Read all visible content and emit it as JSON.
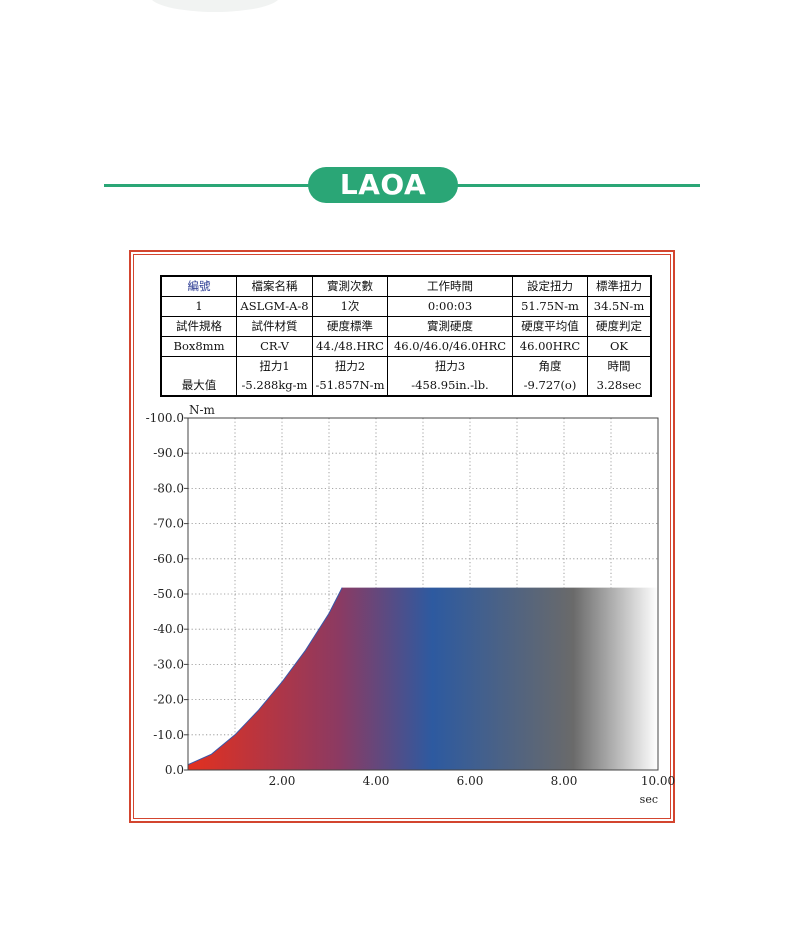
{
  "brand": {
    "name": "LAOA",
    "accent": "#2aa676"
  },
  "frame_color": "#d3452f",
  "info_table": {
    "row1": [
      {
        "header": "編號",
        "value": "1"
      },
      {
        "header": "檔案名稱",
        "value": "ASLGM-A-8"
      },
      {
        "header": "實測次數",
        "value": "1次"
      },
      {
        "header": "工作時間",
        "value": "0:00:03"
      },
      {
        "header": "設定扭力",
        "value": "51.75N-m"
      },
      {
        "header": "標準扭力",
        "value": "34.5N-m"
      }
    ],
    "row2": [
      {
        "header": "試件規格",
        "value": "Box8mm"
      },
      {
        "header": "試件材質",
        "value": "CR-V"
      },
      {
        "header": "硬度標準",
        "value": "44./48.HRC"
      },
      {
        "header": "實測硬度",
        "value": "46.0/46.0/46.0HRC"
      },
      {
        "header": "硬度平均值",
        "value": "46.00HRC"
      },
      {
        "header": "硬度判定",
        "value": "OK"
      }
    ],
    "row3_label": "最大值",
    "row3": [
      {
        "header": "扭力1",
        "value": "-5.288kg-m"
      },
      {
        "header": "扭力2",
        "value": "-51.857N-m"
      },
      {
        "header": "扭力3",
        "value": "-458.95in.-lb."
      },
      {
        "header": "角度",
        "value": "-9.727(o)"
      },
      {
        "header": "時間",
        "value": "3.28sec"
      }
    ]
  },
  "chart_data": {
    "type": "area",
    "ylabel": "N-m",
    "xlabel": "sec",
    "xlim": [
      0,
      10.0
    ],
    "ylim": [
      0,
      -100.0
    ],
    "x_ticks": [
      "2.00",
      "4.00",
      "6.00",
      "8.00",
      "10.00"
    ],
    "x_tick_values": [
      2,
      4,
      6,
      8,
      10
    ],
    "y_ticks": [
      "0.0",
      "-10.0",
      "-20.0",
      "-30.0",
      "-40.0",
      "-50.0",
      "-60.0",
      "-70.0",
      "-80.0",
      "-90.0",
      "-100.0"
    ],
    "y_tick_values": [
      0,
      -10,
      -20,
      -30,
      -40,
      -50,
      -60,
      -70,
      -80,
      -90,
      -100
    ],
    "grid": true,
    "series": [
      {
        "x": [
          0,
          0.5,
          1.0,
          1.5,
          2.0,
          2.5,
          3.0,
          3.28,
          4.0,
          5.0,
          6.0,
          7.0,
          8.0,
          9.0,
          10.0
        ],
        "values": [
          -1.5,
          -4.5,
          -10.0,
          -17.0,
          -25.0,
          -34.0,
          -44.5,
          -51.8,
          -51.8,
          -51.8,
          -51.8,
          -51.8,
          -51.8,
          -51.8,
          -51.8
        ]
      }
    ],
    "gradient_colors": [
      "#e2301f",
      "#8c3a62",
      "#2d5aa0",
      "#6a6a6a",
      "#ffffff"
    ]
  }
}
